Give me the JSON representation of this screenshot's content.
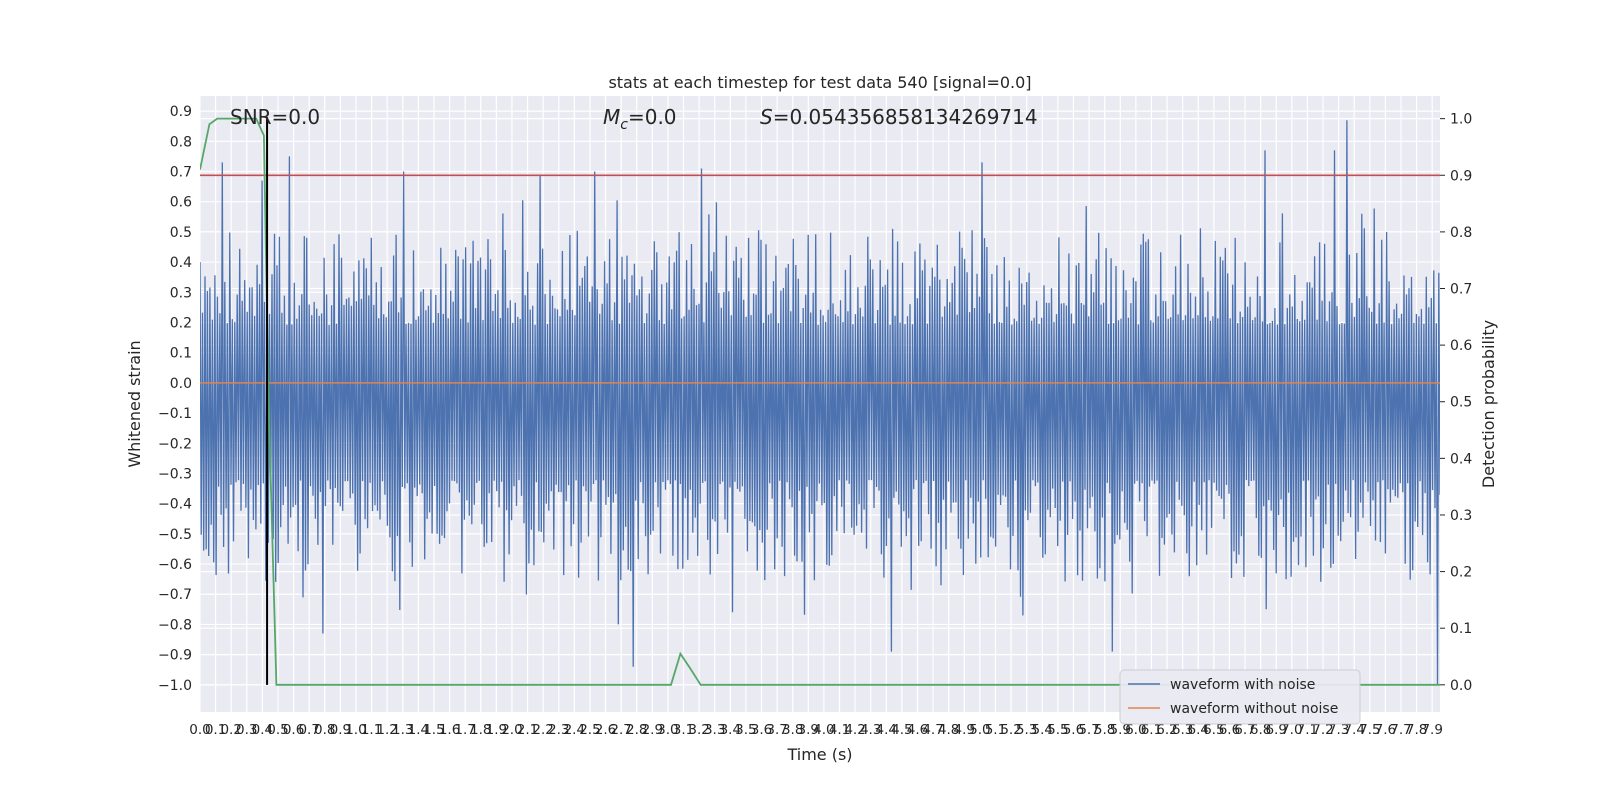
{
  "chart_data": {
    "type": "line",
    "title": "stats at each timestep for test data 540 [signal=0.0]",
    "xlabel": "Time (s)",
    "ylabel": "Whitened strain",
    "y2label": "Detection probability",
    "xlim": [
      0,
      7.95
    ],
    "ylim": [
      -1.09,
      0.95
    ],
    "y2lim": [
      -0.048,
      1.04
    ],
    "x_ticks": [
      "0.0",
      "0.1",
      "0.2",
      "0.3",
      "0.4",
      "0.5",
      "0.6",
      "0.7",
      "0.8",
      "0.9",
      "1.0",
      "1.1",
      "1.2",
      "1.3",
      "1.4",
      "1.5",
      "1.6",
      "1.7",
      "1.8",
      "1.9",
      "2.0",
      "2.1",
      "2.2",
      "2.3",
      "2.4",
      "2.5",
      "2.6",
      "2.7",
      "2.8",
      "2.9",
      "3.0",
      "3.1",
      "3.2",
      "3.3",
      "3.4",
      "3.5",
      "3.6",
      "3.7",
      "3.8",
      "3.9",
      "4.0",
      "4.1",
      "4.2",
      "4.3",
      "4.4",
      "4.5",
      "4.6",
      "4.7",
      "4.8",
      "4.9",
      "5.0",
      "5.1",
      "5.2",
      "5.3",
      "5.4",
      "5.5",
      "5.6",
      "5.7",
      "5.8",
      "5.9",
      "6.0",
      "6.1",
      "6.2",
      "6.3",
      "6.4",
      "6.5",
      "6.6",
      "6.7",
      "6.8",
      "6.9",
      "7.0",
      "7.1",
      "7.2",
      "7.3",
      "7.4",
      "7.5",
      "7.6",
      "7.7",
      "7.8",
      "7.9"
    ],
    "y_ticks": [
      "0.9",
      "0.8",
      "0.7",
      "0.6",
      "0.5",
      "0.4",
      "0.3",
      "0.2",
      "0.1",
      "0.0",
      "−0.1",
      "−0.2",
      "−0.3",
      "−0.4",
      "−0.5",
      "−0.6",
      "−0.7",
      "−0.8",
      "−0.9",
      "−1.0"
    ],
    "y2_ticks": [
      "1.0",
      "0.9",
      "0.8",
      "0.7",
      "0.6",
      "0.5",
      "0.4",
      "0.3",
      "0.2",
      "0.1",
      "0.0"
    ],
    "annotations": {
      "snr": "SNR=0.0",
      "mc_symbol": "M",
      "mc_sub": "c",
      "mc_value": "=0.0",
      "s_symbol": "S",
      "s_value": "=0.054356858134269714"
    },
    "series": [
      {
        "name": "waveform with noise",
        "color": "#4c72b0",
        "noise_band": {
          "typical_max": 0.3,
          "typical_min": -0.43,
          "inner_max": 0.12,
          "inner_min": -0.25
        },
        "spikes": [
          {
            "x": 0.15,
            "y": 0.73
          },
          {
            "x": 0.4,
            "y": 0.67
          },
          {
            "x": 0.57,
            "y": 0.75
          },
          {
            "x": 1.31,
            "y": 0.7
          },
          {
            "x": 2.18,
            "y": 0.69
          },
          {
            "x": 2.53,
            "y": 0.7
          },
          {
            "x": 3.22,
            "y": 0.71
          },
          {
            "x": 5.01,
            "y": 0.73
          },
          {
            "x": 6.82,
            "y": 0.77
          },
          {
            "x": 7.27,
            "y": 0.77
          },
          {
            "x": 7.35,
            "y": 0.87
          },
          {
            "x": 0.78,
            "y": -0.83
          },
          {
            "x": 2.68,
            "y": -0.8
          },
          {
            "x": 2.77,
            "y": -0.94
          },
          {
            "x": 4.44,
            "y": -0.89
          },
          {
            "x": 5.28,
            "y": -0.77
          },
          {
            "x": 5.85,
            "y": -0.89
          },
          {
            "x": 6.84,
            "y": -0.75
          },
          {
            "x": 7.93,
            "y": -1.0
          }
        ]
      },
      {
        "name": "waveform without noise",
        "color": "#dd8452",
        "x": [
          0,
          7.95
        ],
        "y": [
          0.0,
          0.0
        ]
      },
      {
        "name": "detection probability",
        "color": "#55a868",
        "axis": "right",
        "x": [
          0.0,
          0.06,
          0.11,
          0.2,
          0.3,
          0.36,
          0.41,
          0.44,
          0.49,
          3.02,
          3.08,
          3.14,
          3.21,
          7.95
        ],
        "y": [
          0.91,
          0.99,
          1.0,
          1.0,
          1.0,
          1.0,
          0.97,
          0.5,
          0.0,
          0.0,
          0.055,
          0.03,
          0.0,
          0.0
        ]
      }
    ],
    "threshold": {
      "axis": "right",
      "value": 0.9,
      "color": "#c44e52"
    },
    "marker_line": {
      "x": 0.43,
      "ymin": -1.0,
      "ymax": 0.88,
      "color": "#000000"
    },
    "legend_placement": "lower-right",
    "grid": true,
    "noise_seed": 540,
    "noise_points": 1000
  }
}
